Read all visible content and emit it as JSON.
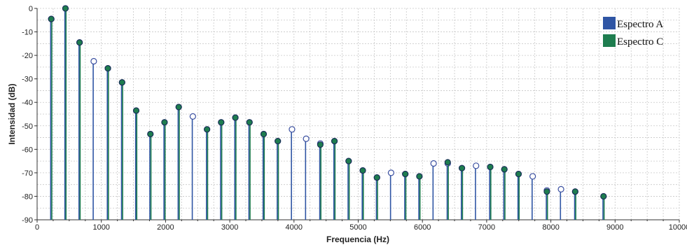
{
  "chart_data": {
    "type": "stem",
    "xlabel": "Frequencia (Hz)",
    "ylabel": "Intensidad (dB)",
    "xlim": [
      0,
      10000
    ],
    "ylim": [
      -90,
      0
    ],
    "xticks": [
      "0",
      "1000",
      "2000",
      "3000",
      "4000",
      "5000",
      "6000",
      "7000",
      "8000",
      "9000",
      "10000"
    ],
    "yticks": [
      "0",
      "-10",
      "-20",
      "-30",
      "-40",
      "-50",
      "-60",
      "-70",
      "-80",
      "-90"
    ],
    "grid": true,
    "legend_position": "top-right",
    "series": [
      {
        "name": "Espectro A",
        "color": "#2f55a4",
        "marker": "hollow-circle",
        "x": [
          220,
          441,
          661,
          882,
          1102,
          1323,
          1543,
          1764,
          1984,
          2205,
          2425,
          2646,
          2866,
          3087,
          3307,
          3528,
          3748,
          3969,
          4189,
          4410,
          4630,
          4851,
          5071,
          5292,
          5512,
          5733,
          5953,
          6174,
          6394,
          6615,
          6835,
          7056,
          7276,
          7497,
          7717,
          7938,
          8158,
          8379,
          8820
        ],
        "y": [
          -4.5,
          0,
          -14.5,
          -22.5,
          -25.5,
          -31.5,
          -43.5,
          -53.5,
          -48.5,
          -42,
          -46,
          -51.5,
          -48.5,
          -46.5,
          -48.5,
          -53.5,
          -56.5,
          -51.5,
          -55.5,
          -57.5,
          -56.5,
          -65,
          -69,
          -72,
          -70,
          -70.5,
          -71.5,
          -66,
          -66,
          -68,
          -67,
          -67.5,
          -68.5,
          -70.5,
          -71.5,
          -77.5,
          -77,
          -78,
          -80
        ]
      },
      {
        "name": "Espectro C",
        "color": "#1e7d4f",
        "marker": "filled-circle",
        "x": [
          220,
          441,
          661,
          1102,
          1323,
          1543,
          1764,
          1984,
          2205,
          2646,
          2866,
          3087,
          3307,
          3528,
          3748,
          4410,
          4630,
          4851,
          5071,
          5292,
          5733,
          5953,
          6394,
          6615,
          7056,
          7276,
          7497,
          7938,
          8379,
          8820
        ],
        "y": [
          -4.5,
          0,
          -14.5,
          -25.5,
          -31.5,
          -43.5,
          -53.5,
          -48.5,
          -42,
          -51.5,
          -48.5,
          -46.5,
          -48.5,
          -53.5,
          -56.5,
          -58,
          -56.5,
          -65,
          -69,
          -72,
          -70.5,
          -71.5,
          -65.5,
          -68,
          -67.5,
          -68.5,
          -70.5,
          -78,
          -78,
          -80
        ]
      }
    ]
  }
}
